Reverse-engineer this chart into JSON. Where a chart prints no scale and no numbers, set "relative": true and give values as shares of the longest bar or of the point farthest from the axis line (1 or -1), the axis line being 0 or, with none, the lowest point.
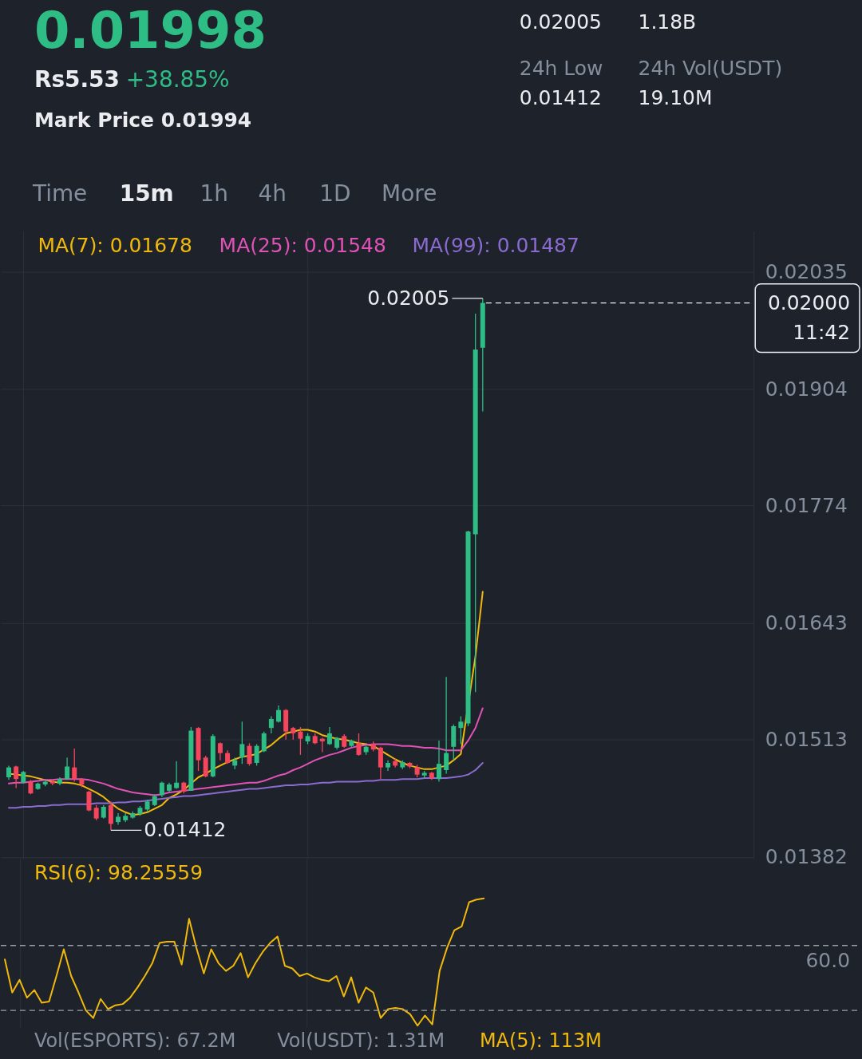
{
  "chart_data": [
    {
      "type": "other",
      "annotations": [
        "0.01998",
        "0.02005",
        "1.18B",
        "Rs5.53",
        "+38.85%",
        "24h Low",
        "24h Vol(USDT)",
        "0.01412",
        "19.10M",
        "Mark Price 0.01994",
        "Time",
        "15m",
        "1h",
        "4h",
        "1D",
        "More"
      ]
    },
    {
      "type": "candlestick",
      "categories": [
        null,
        null,
        null,
        null,
        null,
        null,
        null,
        null,
        null,
        null,
        null,
        null,
        null,
        null,
        null,
        null,
        null,
        null,
        null,
        null,
        null,
        null,
        null,
        null,
        null,
        null,
        null,
        null,
        null,
        null,
        null,
        null,
        null,
        null,
        null,
        null,
        null,
        null,
        null,
        null,
        null,
        null,
        null,
        null,
        null,
        null,
        null,
        null,
        null,
        null,
        null,
        null,
        null,
        null,
        null,
        null,
        null,
        null,
        null,
        null,
        null,
        null,
        null,
        null,
        null,
        null
      ],
      "ohlc": [
        [
          0.01471,
          0.01484,
          0.01468,
          0.01482
        ],
        [
          0.01483,
          0.01484,
          0.01459,
          0.01469
        ],
        [
          0.01465,
          0.01478,
          0.01464,
          0.01477
        ],
        [
          0.01466,
          0.01468,
          0.01452,
          0.01453
        ],
        [
          0.01458,
          0.01465,
          0.01457,
          0.01464
        ],
        [
          0.01463,
          0.01468,
          0.01461,
          0.01466
        ],
        [
          0.01466,
          0.01468,
          0.01462,
          0.01464
        ],
        [
          0.01464,
          0.01471,
          0.01462,
          0.01469
        ],
        [
          0.01469,
          0.01493,
          0.01468,
          0.01483
        ],
        [
          0.01482,
          0.01503,
          0.01466,
          0.01469
        ],
        [
          0.01469,
          0.0147,
          0.0146,
          0.01463
        ],
        [
          0.01455,
          0.01456,
          0.01433,
          0.01434
        ],
        [
          0.01437,
          0.0144,
          0.01423,
          0.01425
        ],
        [
          0.01426,
          0.0144,
          0.01425,
          0.01438
        ],
        [
          0.0144,
          0.01444,
          0.01412,
          0.01419
        ],
        [
          0.01421,
          0.01431,
          0.01418,
          0.01427
        ],
        [
          0.01423,
          0.01431,
          0.01421,
          0.01428
        ],
        [
          0.01426,
          0.01433,
          0.01425,
          0.01431
        ],
        [
          0.0143,
          0.01439,
          0.01428,
          0.01437
        ],
        [
          0.01435,
          0.01446,
          0.01433,
          0.01444
        ],
        [
          0.0144,
          0.01452,
          0.01439,
          0.0145
        ],
        [
          0.01451,
          0.01466,
          0.01449,
          0.01465
        ],
        [
          0.01456,
          0.01465,
          0.01455,
          0.01463
        ],
        [
          0.01459,
          0.01489,
          0.01458,
          0.01465
        ],
        [
          0.01465,
          0.01466,
          0.01453,
          0.01455
        ],
        [
          0.01456,
          0.01527,
          0.01456,
          0.01523
        ],
        [
          0.01526,
          0.01527,
          0.01478,
          0.0149
        ],
        [
          0.01493,
          0.01495,
          0.01471,
          0.01472
        ],
        [
          0.01472,
          0.01519,
          0.01471,
          0.01517
        ],
        [
          0.01509,
          0.0151,
          0.0149,
          0.01498
        ],
        [
          0.01498,
          0.01501,
          0.01486,
          0.01487
        ],
        [
          0.01484,
          0.01493,
          0.0148,
          0.0149
        ],
        [
          0.01493,
          0.01533,
          0.01486,
          0.01508
        ],
        [
          0.01506,
          0.01509,
          0.01484,
          0.01486
        ],
        [
          0.01487,
          0.01508,
          0.01484,
          0.01506
        ],
        [
          0.015,
          0.01522,
          0.01499,
          0.0152
        ],
        [
          0.01526,
          0.01539,
          0.0152,
          0.01536
        ],
        [
          0.01533,
          0.01551,
          0.01532,
          0.01546
        ],
        [
          0.01546,
          0.01547,
          0.01513,
          0.01522
        ],
        [
          0.01526,
          0.01527,
          0.01513,
          0.0152
        ],
        [
          0.01522,
          0.01527,
          0.01496,
          0.01514
        ],
        [
          0.01511,
          0.0152,
          0.01508,
          0.01517
        ],
        [
          0.01517,
          0.0152,
          0.01508,
          0.01509
        ],
        [
          0.01514,
          0.01515,
          0.01499,
          0.01511
        ],
        [
          0.01508,
          0.01527,
          0.01507,
          0.0152
        ],
        [
          0.01504,
          0.01516,
          0.01502,
          0.01515
        ],
        [
          0.01517,
          0.01519,
          0.01504,
          0.01505
        ],
        [
          0.01506,
          0.01513,
          0.01505,
          0.01512
        ],
        [
          0.01509,
          0.0152,
          0.01495,
          0.01496
        ],
        [
          0.01499,
          0.01506,
          0.01496,
          0.01505
        ],
        [
          0.01508,
          0.01511,
          0.015,
          0.01502
        ],
        [
          0.01504,
          0.01505,
          0.01469,
          0.01482
        ],
        [
          0.01482,
          0.0149,
          0.01478,
          0.01487
        ],
        [
          0.01489,
          0.01492,
          0.01482,
          0.01484
        ],
        [
          0.01482,
          0.0149,
          0.0148,
          0.01488
        ],
        [
          0.01487,
          0.01488,
          0.01481,
          0.01483
        ],
        [
          0.01482,
          0.01485,
          0.01471,
          0.01474
        ],
        [
          0.01473,
          0.01478,
          0.0147,
          0.01476
        ],
        [
          0.01476,
          0.01477,
          0.01468,
          0.0147
        ],
        [
          0.01469,
          0.01512,
          0.01466,
          0.01486
        ],
        [
          0.01479,
          0.01583,
          0.01475,
          0.01498
        ],
        [
          0.01505,
          0.0153,
          0.0149,
          0.01528
        ],
        [
          0.01526,
          0.01539,
          0.01508,
          0.01533
        ],
        [
          0.01531,
          0.01746,
          0.01528,
          0.01745
        ],
        [
          0.01742,
          0.01988,
          0.01566,
          0.01948
        ],
        [
          0.0195,
          0.02005,
          0.01879,
          0.02
        ]
      ],
      "colors": [
        "#2ebd85",
        "#f6465d",
        "#2ebd85",
        "#f6465d",
        "#2ebd85",
        "#2ebd85",
        "#f6465d",
        "#2ebd85",
        "#2ebd85",
        "#f6465d",
        "#f6465d",
        "#f6465d",
        "#f6465d",
        "#2ebd85",
        "#f6465d",
        "#2ebd85",
        "#2ebd85",
        "#2ebd85",
        "#2ebd85",
        "#2ebd85",
        "#2ebd85",
        "#2ebd85",
        "#2ebd85",
        "#2ebd85",
        "#f6465d",
        "#2ebd85",
        "#f6465d",
        "#f6465d",
        "#2ebd85",
        "#f6465d",
        "#f6465d",
        "#2ebd85",
        "#2ebd85",
        "#f6465d",
        "#2ebd85",
        "#2ebd85",
        "#2ebd85",
        "#2ebd85",
        "#f6465d",
        "#f6465d",
        "#f6465d",
        "#2ebd85",
        "#f6465d",
        "#f6465d",
        "#2ebd85",
        "#2ebd85",
        "#f6465d",
        "#2ebd85",
        "#f6465d",
        "#2ebd85",
        "#f6465d",
        "#f6465d",
        "#2ebd85",
        "#f6465d",
        "#2ebd85",
        "#f6465d",
        "#f6465d",
        "#2ebd85",
        "#f6465d",
        "#2ebd85",
        "#2ebd85",
        "#2ebd85",
        "#2ebd85",
        "#2ebd85",
        "#2ebd85",
        "#2ebd85"
      ],
      "series": [
        {
          "name": "MA(7): 0.01678",
          "type": "line",
          "color": "#f0b90b",
          "values": [
            0.01475,
            0.01474,
            0.01473,
            0.01472,
            0.0147,
            0.01468,
            0.01466,
            0.01465,
            0.01465,
            0.01464,
            0.01462,
            0.01458,
            0.01454,
            0.01449,
            0.01442,
            0.01436,
            0.01432,
            0.01429,
            0.0143,
            0.01432,
            0.01436,
            0.0144,
            0.01448,
            0.01452,
            0.01457,
            0.01464,
            0.01471,
            0.01475,
            0.0148,
            0.01484,
            0.01488,
            0.01491,
            0.01494,
            0.01495,
            0.01497,
            0.01502,
            0.01507,
            0.01514,
            0.0152,
            0.01522,
            0.01524,
            0.01524,
            0.01522,
            0.01518,
            0.01516,
            0.01514,
            0.01513,
            0.01511,
            0.01509,
            0.01508,
            0.01506,
            0.01501,
            0.01496,
            0.01491,
            0.01487,
            0.01484,
            0.01482,
            0.0148,
            0.0148,
            0.01482,
            0.01484,
            0.0149,
            0.01497,
            null,
            0.01606,
            0.01678
          ]
        },
        {
          "name": "MA(25): 0.01548",
          "type": "line",
          "color": "#e052b6",
          "values": [
            0.01464,
            0.01465,
            0.01465,
            0.01466,
            0.01467,
            0.01468,
            0.01468,
            0.01469,
            0.01469,
            0.01469,
            0.01469,
            0.01468,
            0.01466,
            0.01464,
            0.01461,
            0.01458,
            0.01456,
            0.01454,
            0.01453,
            0.01452,
            0.01451,
            0.01452,
            0.01454,
            0.01455,
            0.01456,
            0.01457,
            0.01458,
            0.01459,
            0.0146,
            0.01461,
            0.01462,
            0.01463,
            0.01464,
            0.01465,
            0.01465,
            0.01467,
            0.0147,
            0.01473,
            0.01475,
            0.01479,
            0.01482,
            0.01486,
            0.0149,
            0.01493,
            0.01496,
            0.01498,
            0.01501,
            0.01504,
            0.01506,
            0.01507,
            0.01508,
            0.01508,
            0.01508,
            0.01507,
            0.01506,
            0.01506,
            0.01505,
            0.01504,
            0.01504,
            0.01503,
            0.01501,
            0.01501,
            0.01501,
            0.01512,
            0.01526,
            0.01548
          ]
        },
        {
          "name": "MA(99): 0.01487",
          "type": "line",
          "color": "#8a6bd0",
          "values": [
            0.01437,
            0.01437,
            0.01438,
            0.01438,
            0.01439,
            0.01439,
            0.0144,
            0.0144,
            0.01441,
            0.01441,
            0.01441,
            0.01441,
            0.01442,
            0.01442,
            0.01442,
            0.01443,
            0.01443,
            0.01444,
            0.01444,
            0.01445,
            0.01446,
            0.01447,
            0.01448,
            0.01449,
            0.0145,
            0.0145,
            0.01451,
            0.01452,
            0.01453,
            0.01454,
            0.01455,
            0.01456,
            0.01457,
            0.01458,
            0.01458,
            0.01459,
            0.0146,
            0.01461,
            0.01462,
            0.01462,
            0.01463,
            0.01463,
            0.01464,
            0.01465,
            0.01465,
            0.01466,
            0.01466,
            0.01466,
            0.01466,
            0.01467,
            0.01467,
            0.01468,
            0.01468,
            0.01468,
            0.01469,
            0.01469,
            0.01469,
            0.0147,
            0.0147,
            0.0147,
            0.0147,
            0.01471,
            0.01472,
            0.01474,
            0.01479,
            0.01487
          ]
        }
      ],
      "ylim": [
        0.0138,
        0.0208
      ],
      "yticks": [
        0.01382,
        0.01513,
        0.01643,
        0.01774,
        0.01904,
        0.02035
      ],
      "grid": true,
      "legend": "top",
      "tick_labels": "y",
      "ref_lines": [
        {
          "axis": "y",
          "value": 0.02,
          "label": "0.02000",
          "line_style": "dashed",
          "color": "#eaecef"
        }
      ],
      "annotations": [
        "0.02005",
        "0.01412",
        "11:42"
      ]
    },
    {
      "type": "line",
      "relative": true,
      "categories": [
        null,
        null,
        null,
        null,
        null,
        null,
        null,
        null,
        null,
        null,
        null,
        null,
        null,
        null,
        null,
        null,
        null,
        null,
        null,
        null,
        null,
        null,
        null,
        null,
        null,
        null,
        null,
        null,
        null,
        null,
        null,
        null,
        null,
        null,
        null,
        null,
        null,
        null,
        null,
        null,
        null,
        null,
        null,
        null,
        null,
        null,
        null,
        null,
        null,
        null,
        null,
        null,
        null,
        null,
        null,
        null,
        null,
        null,
        null,
        null,
        null,
        null,
        null,
        null,
        null,
        null
      ],
      "series": [
        {
          "name": "RSI(6): 98.25559",
          "color": "#f0b90b",
          "values": [
            0.52,
            0.26,
            0.36,
            0.22,
            0.28,
            0.18,
            0.19,
            0.39,
            0.6,
            0.39,
            0.26,
            0.12,
            0.06,
            0.21,
            0.13,
            0.16,
            0.17,
            0.22,
            0.3,
            0.39,
            0.49,
            0.65,
            0.66,
            0.66,
            0.48,
            0.84,
            0.61,
            0.41,
            0.6,
            0.49,
            0.43,
            0.47,
            0.57,
            0.38,
            0.49,
            0.58,
            0.65,
            0.7,
            0.47,
            0.45,
            0.39,
            0.41,
            0.38,
            0.36,
            0.35,
            0.39,
            0.23,
            0.38,
            0.18,
            0.3,
            0.26,
            0.06,
            0.13,
            0.14,
            0.13,
            0.09,
            0,
            0.08,
            0.01,
            0.43,
            0.61,
            0.75,
            0.78,
            0.97,
            0.99,
            1
          ]
        }
      ],
      "grid": "x",
      "legend": "top left",
      "tick_labels": "y",
      "ref_lines": [
        {
          "axis": "y",
          "value": 0.63,
          "line_style": "dashed",
          "color": "#9aa0a8"
        },
        {
          "axis": "y",
          "value": 0.12,
          "line_style": "dashed",
          "color": "#9aa0a8"
        }
      ],
      "annotations": [
        "60.0"
      ]
    },
    {
      "type": "other",
      "annotations": [
        "Vol(ESPORTS): 67.2M",
        "Vol(USDT): 1.31M",
        "MA(5): 113M"
      ]
    }
  ]
}
